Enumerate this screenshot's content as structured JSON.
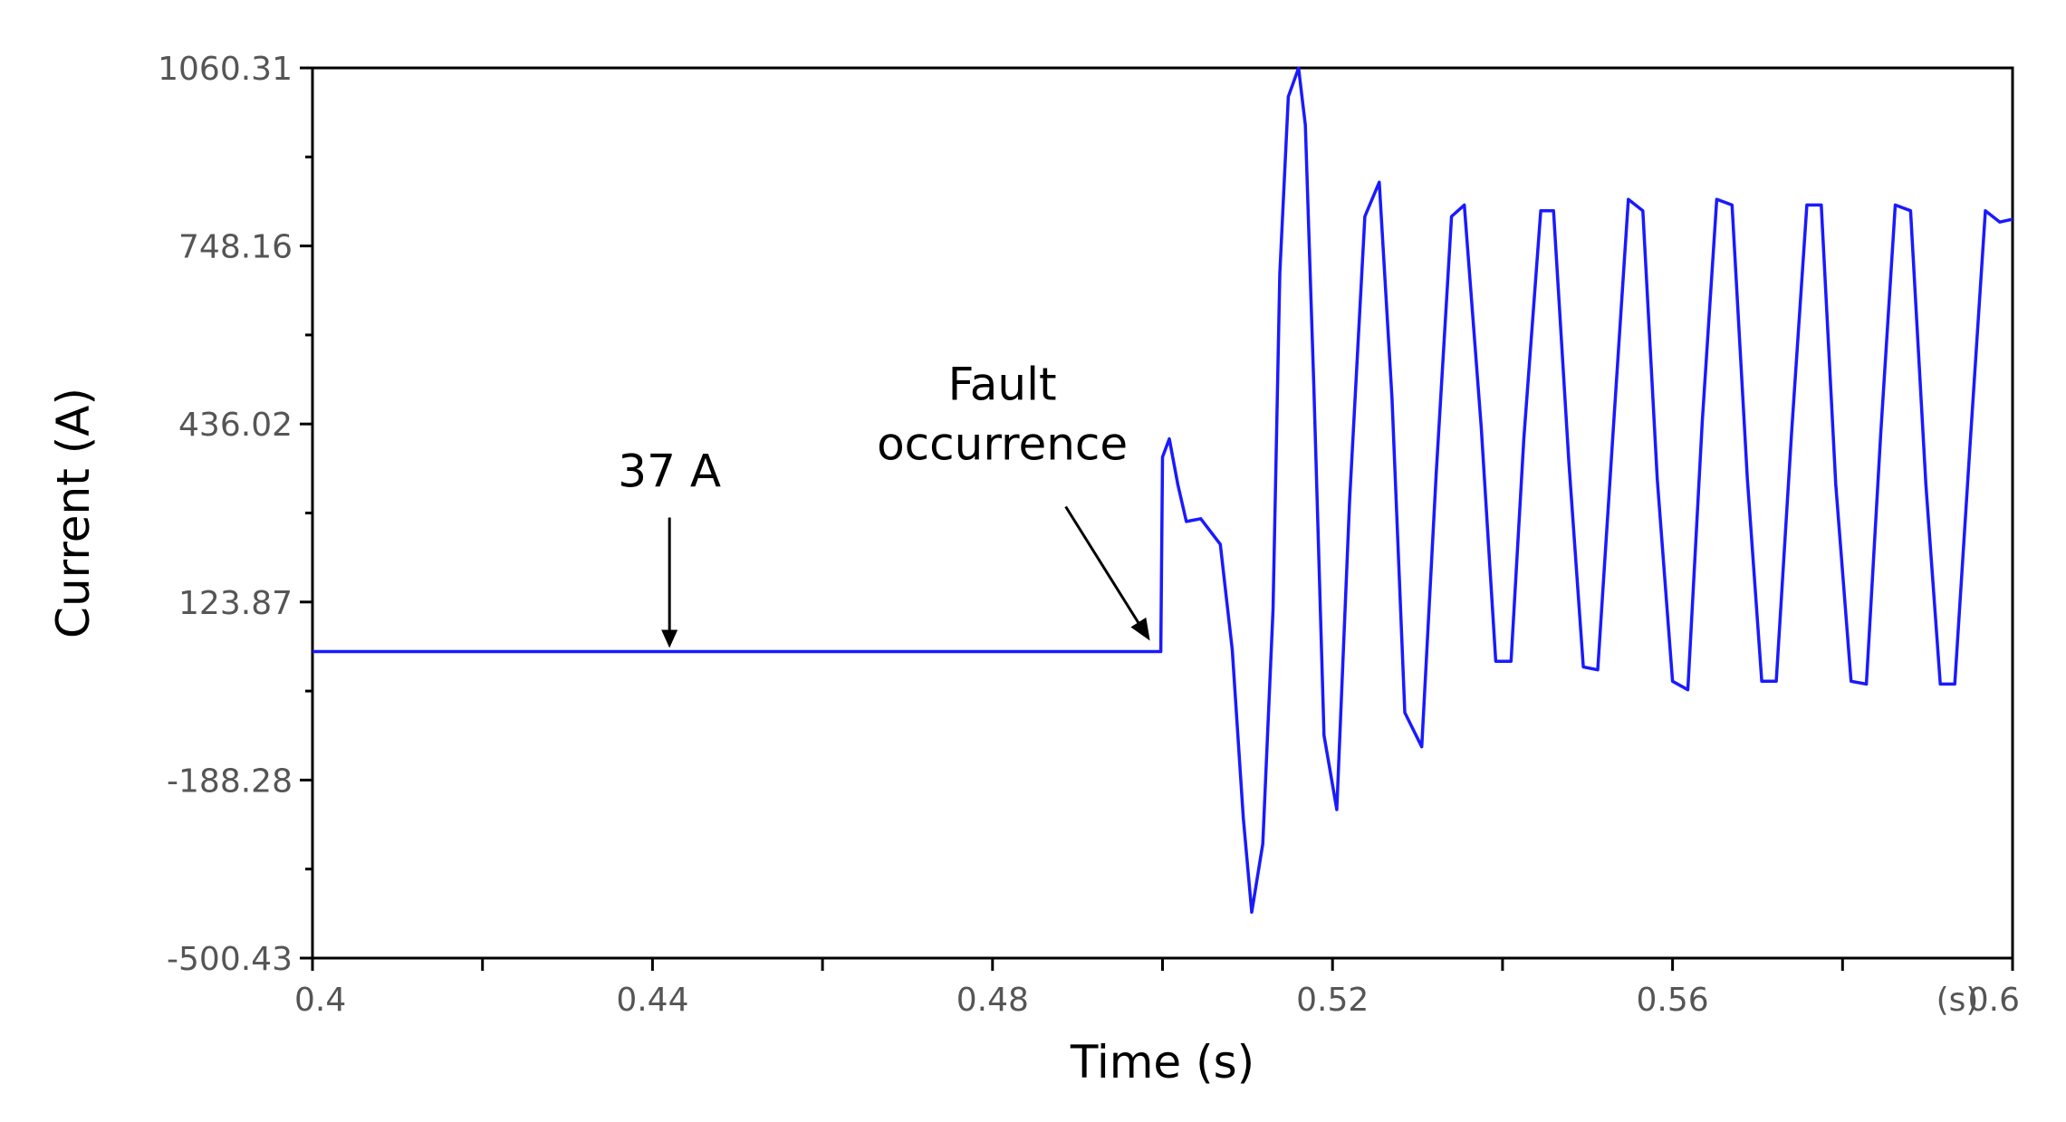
{
  "chart_data": {
    "type": "line",
    "title": "",
    "xlabel": "Time (s)",
    "ylabel": "Current (A)",
    "x_unit_label": "(s)",
    "xlim": [
      0.4,
      0.6
    ],
    "ylim": [
      -500.43,
      1060.31
    ],
    "x_ticks": [
      "0.4",
      "0.44",
      "0.48",
      "0.52",
      "0.56",
      "0.6"
    ],
    "x_tick_values": [
      0.4,
      0.44,
      0.48,
      0.52,
      0.56,
      0.6
    ],
    "x_minor_ticks": [
      0.42,
      0.46,
      0.5,
      0.54,
      0.58
    ],
    "y_ticks": [
      "1060.31",
      "748.16",
      "436.02",
      "123.87",
      "-188.28",
      "-500.43"
    ],
    "y_tick_values": [
      1060.31,
      748.16,
      436.02,
      123.87,
      -188.28,
      -500.43
    ],
    "y_minor_ticks": [
      904.24,
      592.09,
      279.95,
      -32.21,
      -344.36
    ],
    "grid": false,
    "legend": "none",
    "line_color": "#1a1aff",
    "series": [
      {
        "x": [
          0.4,
          0.44,
          0.48,
          0.4998,
          0.5,
          0.5008,
          0.5018,
          0.5028,
          0.5045,
          0.5068,
          0.5082,
          0.5095,
          0.5105,
          0.5118,
          0.513,
          0.5138,
          0.5148,
          0.516,
          0.5168,
          0.5178,
          0.519,
          0.5205,
          0.522,
          0.5238,
          0.5255,
          0.527,
          0.5285,
          0.5305,
          0.5322,
          0.534,
          0.5355,
          0.5375,
          0.5392,
          0.541,
          0.5425,
          0.5445,
          0.546,
          0.5478,
          0.5495,
          0.5512,
          0.553,
          0.5548,
          0.5565,
          0.5582,
          0.56,
          0.5618,
          0.5635,
          0.5652,
          0.567,
          0.5688,
          0.5705,
          0.5722,
          0.574,
          0.5758,
          0.5775,
          0.5792,
          0.581,
          0.5828,
          0.5845,
          0.5862,
          0.588,
          0.5898,
          0.5915,
          0.5932,
          0.595,
          0.5968,
          0.5985,
          0.6
        ],
        "y": [
          37,
          37,
          37,
          37,
          378,
          410,
          330,
          265,
          270,
          225,
          40,
          -255,
          -420,
          -300,
          110,
          700,
          1010,
          1060,
          960,
          500,
          -110,
          -240,
          300,
          800,
          860,
          480,
          -70,
          -130,
          350,
          800,
          820,
          430,
          20,
          20,
          410,
          810,
          810,
          370,
          10,
          5,
          420,
          830,
          810,
          340,
          -15,
          -30,
          440,
          830,
          820,
          340,
          -15,
          -15,
          420,
          820,
          820,
          330,
          -15,
          -20,
          420,
          820,
          810,
          330,
          -20,
          -20,
          400,
          810,
          790,
          795
        ]
      }
    ],
    "annotations": [
      {
        "label": "37 A",
        "x": 0.442,
        "y": 37
      },
      {
        "label_line1": "Fault",
        "label_line2": "occurrence",
        "x": 0.4998,
        "y": 37
      }
    ]
  }
}
